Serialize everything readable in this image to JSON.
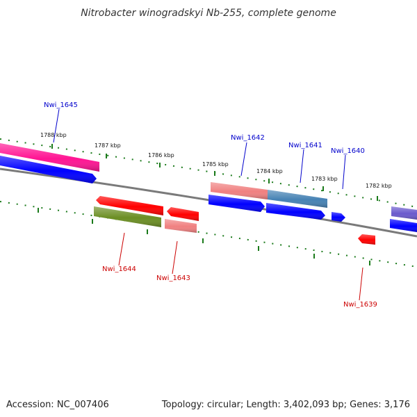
{
  "title": "Nitrobacter winogradskyi Nb-255, complete genome",
  "footer": {
    "accession": "Accession: NC_007406",
    "topology": "Topology: circular; Length: 3,402,093 bp; Genes: 3,176"
  },
  "ticks": [
    {
      "label": "1788 kbp"
    },
    {
      "label": "1787 kbp"
    },
    {
      "label": "1786 kbp"
    },
    {
      "label": "1785 kbp"
    },
    {
      "label": "1784 kbp"
    },
    {
      "label": "1783 kbp"
    },
    {
      "label": "1782 kbp"
    }
  ],
  "genes": [
    {
      "name": "Nwi_1645",
      "strand": "plus"
    },
    {
      "name": "Nwi_1642",
      "strand": "plus"
    },
    {
      "name": "Nwi_1641",
      "strand": "plus"
    },
    {
      "name": "Nwi_1640",
      "strand": "plus"
    },
    {
      "name": "Nwi_1644",
      "strand": "minus"
    },
    {
      "name": "Nwi_1643",
      "strand": "minus"
    },
    {
      "name": "Nwi_1639",
      "strand": "minus"
    }
  ],
  "colors": {
    "plus_label": "#0000cc",
    "minus_label": "#cc0000",
    "tick_green": "#1a7a1a",
    "backbone": "#808080",
    "blue": "#0000ff",
    "red": "#ff0000",
    "pink": "#ff1493",
    "salmon": "#f08080",
    "steel": "#4682b4",
    "olive": "#6b8e23",
    "purple": "#6a5acd"
  }
}
